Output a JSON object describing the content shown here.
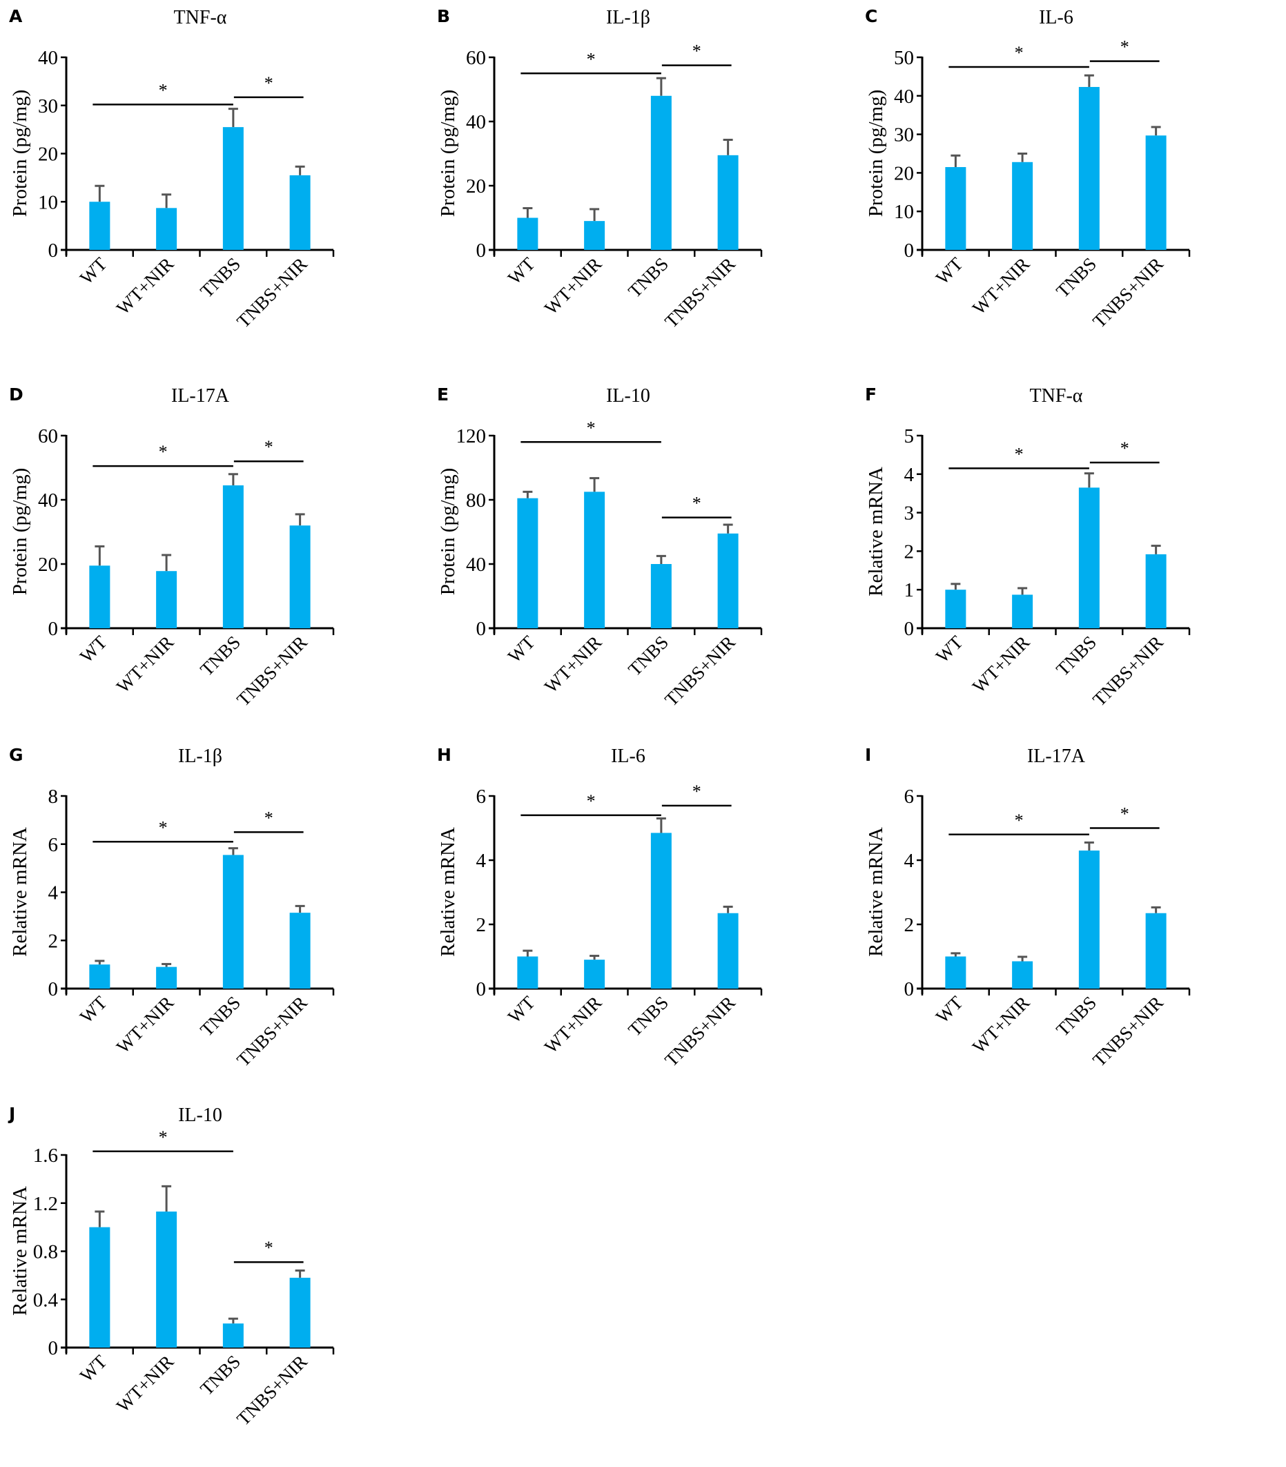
{
  "chart_data": [
    {
      "letter": "A",
      "type": "bar",
      "title": "TNF-α",
      "ylabel": "Protein (pg/mg)",
      "categories": [
        "WT",
        "WT+NIR",
        "TNBS",
        "TNBS+NIR"
      ],
      "ylim": [
        0,
        40
      ],
      "yticks": [
        "0",
        "10",
        "20",
        "30",
        "40"
      ],
      "values": [
        10,
        8.7,
        25.5,
        15.5
      ],
      "errors": [
        3.3,
        2.8,
        3.8,
        1.8
      ],
      "significance": [
        {
          "from": 0,
          "to": 2,
          "level": 30.2,
          "label": "*"
        },
        {
          "from": 2,
          "to": 3,
          "level": 31.7,
          "label": "*"
        }
      ]
    },
    {
      "letter": "B",
      "type": "bar",
      "title": "IL-1β",
      "ylabel": "Protein (pg/mg)",
      "categories": [
        "WT",
        "WT+NIR",
        "TNBS",
        "TNBS+NIR"
      ],
      "ylim": [
        0,
        60
      ],
      "yticks": [
        "0",
        "20",
        "40",
        "60"
      ],
      "values": [
        10,
        9,
        48,
        29.5
      ],
      "errors": [
        3,
        3.7,
        5.5,
        4.8
      ],
      "significance": [
        {
          "from": 0,
          "to": 2,
          "level": 55,
          "label": "*"
        },
        {
          "from": 2,
          "to": 3,
          "level": 57.5,
          "label": "*"
        }
      ]
    },
    {
      "letter": "C",
      "type": "bar",
      "title": "IL-6",
      "ylabel": "Protein (pg/mg)",
      "categories": [
        "WT",
        "WT+NIR",
        "TNBS",
        "TNBS+NIR"
      ],
      "ylim": [
        0,
        50
      ],
      "yticks": [
        "0",
        "10",
        "20",
        "30",
        "40",
        "50"
      ],
      "values": [
        21.5,
        22.8,
        42.3,
        29.7
      ],
      "errors": [
        3,
        2.2,
        3,
        2.2
      ],
      "significance": [
        {
          "from": 0,
          "to": 2,
          "level": 47.5,
          "label": "*"
        },
        {
          "from": 2,
          "to": 3,
          "level": 49,
          "label": "*"
        }
      ]
    },
    {
      "letter": "D",
      "type": "bar",
      "title": "IL-17A",
      "ylabel": "Protein (pg/mg)",
      "categories": [
        "WT",
        "WT+NIR",
        "TNBS",
        "TNBS+NIR"
      ],
      "ylim": [
        0,
        60
      ],
      "yticks": [
        "0",
        "20",
        "40",
        "60"
      ],
      "values": [
        19.5,
        17.8,
        44.5,
        32
      ],
      "errors": [
        6,
        5,
        3.5,
        3.5
      ],
      "significance": [
        {
          "from": 0,
          "to": 2,
          "level": 50.5,
          "label": "*"
        },
        {
          "from": 2,
          "to": 3,
          "level": 52,
          "label": "*"
        }
      ]
    },
    {
      "letter": "E",
      "type": "bar",
      "title": "IL-10",
      "ylabel": "Protein (pg/mg)",
      "categories": [
        "WT",
        "WT+NIR",
        "TNBS",
        "TNBS+NIR"
      ],
      "ylim": [
        0,
        120
      ],
      "yticks": [
        "0",
        "40",
        "80",
        "120"
      ],
      "values": [
        81,
        85,
        40,
        59
      ],
      "errors": [
        4,
        8.5,
        5,
        5.5
      ],
      "significance": [
        {
          "from": 0,
          "to": 2,
          "level": 116,
          "label": "*"
        },
        {
          "from": 2,
          "to": 3,
          "level": 69,
          "label": "*"
        }
      ]
    },
    {
      "letter": "F",
      "type": "bar",
      "title": "TNF-α",
      "ylabel": "Relative mRNA",
      "categories": [
        "WT",
        "WT+NIR",
        "TNBS",
        "TNBS+NIR"
      ],
      "ylim": [
        0,
        5
      ],
      "yticks": [
        "0",
        "1",
        "2",
        "3",
        "4",
        "5"
      ],
      "values": [
        1.0,
        0.87,
        3.65,
        1.92
      ],
      "errors": [
        0.15,
        0.17,
        0.37,
        0.22
      ],
      "significance": [
        {
          "from": 0,
          "to": 2,
          "level": 4.15,
          "label": "*"
        },
        {
          "from": 2,
          "to": 3,
          "level": 4.3,
          "label": "*"
        }
      ]
    },
    {
      "letter": "G",
      "type": "bar",
      "title": "IL-1β",
      "ylabel": "Relative mRNA",
      "categories": [
        "WT",
        "WT+NIR",
        "TNBS",
        "TNBS+NIR"
      ],
      "ylim": [
        0,
        8
      ],
      "yticks": [
        "0",
        "2",
        "4",
        "6",
        "8"
      ],
      "values": [
        1.0,
        0.9,
        5.55,
        3.15
      ],
      "errors": [
        0.15,
        0.12,
        0.28,
        0.28
      ],
      "significance": [
        {
          "from": 0,
          "to": 2,
          "level": 6.1,
          "label": "*"
        },
        {
          "from": 2,
          "to": 3,
          "level": 6.5,
          "label": "*"
        }
      ]
    },
    {
      "letter": "H",
      "type": "bar",
      "title": "IL-6",
      "ylabel": "Relative mRNA",
      "categories": [
        "WT",
        "WT+NIR",
        "TNBS",
        "TNBS+NIR"
      ],
      "ylim": [
        0,
        6
      ],
      "yticks": [
        "0",
        "2",
        "4",
        "6"
      ],
      "values": [
        1.0,
        0.9,
        4.85,
        2.35
      ],
      "errors": [
        0.18,
        0.12,
        0.45,
        0.2
      ],
      "significance": [
        {
          "from": 0,
          "to": 2,
          "level": 5.4,
          "label": "*"
        },
        {
          "from": 2,
          "to": 3,
          "level": 5.7,
          "label": "*"
        }
      ]
    },
    {
      "letter": "I",
      "type": "bar",
      "title": "IL-17A",
      "ylabel": "Relative mRNA",
      "categories": [
        "WT",
        "WT+NIR",
        "TNBS",
        "TNBS+NIR"
      ],
      "ylim": [
        0,
        6
      ],
      "yticks": [
        "0",
        "2",
        "4",
        "6"
      ],
      "values": [
        1.0,
        0.85,
        4.3,
        2.35
      ],
      "errors": [
        0.1,
        0.14,
        0.25,
        0.18
      ],
      "significance": [
        {
          "from": 0,
          "to": 2,
          "level": 4.8,
          "label": "*"
        },
        {
          "from": 2,
          "to": 3,
          "level": 5.0,
          "label": "*"
        }
      ]
    },
    {
      "letter": "J",
      "type": "bar",
      "title": "IL-10",
      "ylabel": "Relative mRNA",
      "categories": [
        "WT",
        "WT+NIR",
        "TNBS",
        "TNBS+NIR"
      ],
      "ylim": [
        0,
        1.6
      ],
      "yticks": [
        "0",
        "0.4",
        "0.8",
        "1.2",
        "1.6"
      ],
      "values": [
        1.0,
        1.13,
        0.2,
        0.58
      ],
      "errors": [
        0.13,
        0.21,
        0.04,
        0.06
      ],
      "significance": [
        {
          "from": 0,
          "to": 2,
          "level": 1.63,
          "label": "*"
        },
        {
          "from": 2,
          "to": 3,
          "level": 0.71,
          "label": "*"
        }
      ]
    }
  ],
  "colors": {
    "bar": "#00aeef",
    "error": "#555555",
    "axis": "#000000"
  }
}
